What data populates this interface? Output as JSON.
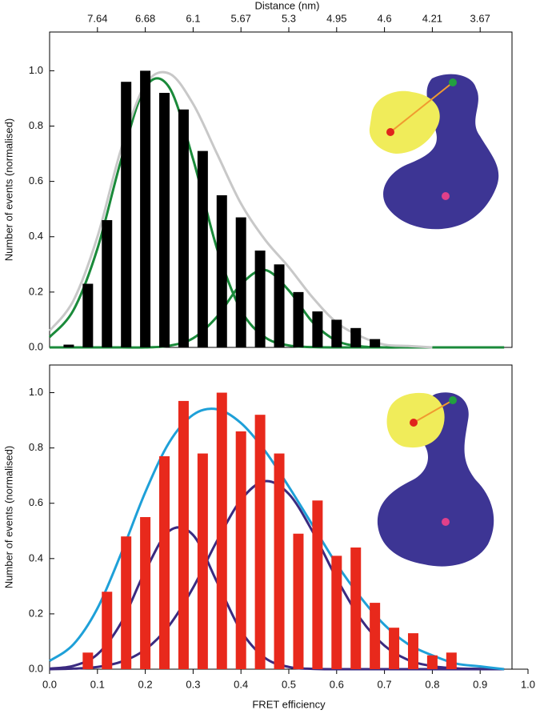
{
  "chart_data": [
    {
      "type": "bar",
      "ylabel": "Number of events (normalised)",
      "x2label": "Distance (nm)",
      "xlim": [
        0,
        1
      ],
      "ylim": [
        0,
        1.14
      ],
      "yticks": [
        {
          "value": 0,
          "label": "0.0"
        },
        0.2,
        0.4,
        0.6,
        0.8,
        {
          "value": 1,
          "label": "1.0"
        }
      ],
      "x2ticks": [
        {
          "value": 0.1,
          "label": "7.64"
        },
        {
          "value": 0.2,
          "label": "6.68"
        },
        {
          "value": 0.3,
          "label": "6.1"
        },
        {
          "value": 0.4,
          "label": "5.67"
        },
        {
          "value": 0.5,
          "label": "5.3"
        },
        {
          "value": 0.6,
          "label": "4.95"
        },
        {
          "value": 0.7,
          "label": "4.6"
        },
        {
          "value": 0.8,
          "label": "4.21"
        },
        {
          "value": 0.9,
          "label": "3.67"
        }
      ],
      "color": "#000000",
      "x": [
        0.04,
        0.08,
        0.12,
        0.16,
        0.2,
        0.24,
        0.28,
        0.32,
        0.36,
        0.4,
        0.44,
        0.48,
        0.52,
        0.56,
        0.6,
        0.64,
        0.68
      ],
      "values": [
        0.01,
        0.23,
        0.46,
        0.96,
        1.0,
        0.92,
        0.86,
        0.71,
        0.55,
        0.47,
        0.35,
        0.3,
        0.2,
        0.13,
        0.1,
        0.07,
        0.03
      ],
      "curves": [
        {
          "color": "#c8c8c8",
          "x": [
            0,
            0.05,
            0.1,
            0.15,
            0.2,
            0.25,
            0.3,
            0.35,
            0.4,
            0.45,
            0.5,
            0.55,
            0.6,
            0.65,
            0.7,
            0.75,
            0.8
          ],
          "values": [
            0.06,
            0.17,
            0.4,
            0.72,
            0.95,
            0.99,
            0.88,
            0.7,
            0.52,
            0.39,
            0.29,
            0.18,
            0.09,
            0.04,
            0.01,
            0.005,
            0
          ]
        },
        {
          "color": "#1a8a3a",
          "x": [
            0,
            0.05,
            0.1,
            0.15,
            0.2,
            0.25,
            0.3,
            0.35,
            0.4,
            0.45,
            0.5,
            0.55,
            0.6,
            0.65,
            0.7,
            0.75,
            0.8,
            0.85,
            0.9,
            0.95
          ],
          "values": [
            0.037,
            0.135,
            0.357,
            0.68,
            0.94,
            0.94,
            0.68,
            0.357,
            0.135,
            0.037,
            0.007,
            0.001,
            0,
            0,
            0,
            0,
            0,
            0,
            0,
            0
          ]
        },
        {
          "color": "#1a8a3a",
          "x": [
            0,
            0.05,
            0.1,
            0.15,
            0.2,
            0.25,
            0.3,
            0.35,
            0.4,
            0.45,
            0.5,
            0.55,
            0.6,
            0.65,
            0.7,
            0.75,
            0.8,
            0.85,
            0.9,
            0.95
          ],
          "values": [
            0,
            0,
            0,
            0,
            0,
            0.006,
            0.033,
            0.111,
            0.228,
            0.28,
            0.206,
            0.091,
            0.024,
            0.004,
            0,
            0,
            0,
            0,
            0,
            0
          ]
        }
      ]
    },
    {
      "type": "bar",
      "ylabel": "Number of events (normalised)",
      "xlabel": "FRET efficiency",
      "xlim": [
        0,
        1
      ],
      "ylim": [
        0,
        1.1
      ],
      "yticks": [
        {
          "value": 0,
          "label": "0.0"
        },
        0.2,
        0.4,
        0.6,
        0.8,
        {
          "value": 1,
          "label": "1.0"
        }
      ],
      "xticks": [
        {
          "value": 0,
          "label": "0.0"
        },
        0.1,
        0.2,
        0.3,
        0.4,
        0.5,
        0.6,
        0.7,
        0.8,
        0.9,
        {
          "value": 1,
          "label": "1.0"
        }
      ],
      "color": "#e8291c",
      "x": [
        0.08,
        0.12,
        0.16,
        0.2,
        0.24,
        0.28,
        0.32,
        0.36,
        0.4,
        0.44,
        0.48,
        0.52,
        0.56,
        0.6,
        0.64,
        0.68,
        0.72,
        0.76,
        0.8,
        0.84
      ],
      "values": [
        0.06,
        0.28,
        0.48,
        0.55,
        0.77,
        0.97,
        0.78,
        1.0,
        0.86,
        0.92,
        0.78,
        0.49,
        0.61,
        0.41,
        0.44,
        0.24,
        0.15,
        0.13,
        0.05,
        0.06
      ],
      "curves": [
        {
          "color": "#1ea0d8",
          "x": [
            0,
            0.05,
            0.1,
            0.15,
            0.2,
            0.25,
            0.3,
            0.35,
            0.4,
            0.45,
            0.5,
            0.55,
            0.6,
            0.65,
            0.7,
            0.75,
            0.8,
            0.85,
            0.9,
            0.95
          ],
          "values": [
            0.03,
            0.09,
            0.22,
            0.42,
            0.64,
            0.82,
            0.92,
            0.94,
            0.89,
            0.79,
            0.66,
            0.52,
            0.38,
            0.26,
            0.16,
            0.09,
            0.05,
            0.02,
            0.01,
            0
          ]
        },
        {
          "color": "#3a2a80",
          "x": [
            0,
            0.05,
            0.1,
            0.15,
            0.2,
            0.25,
            0.3,
            0.35,
            0.4,
            0.45,
            0.5,
            0.55,
            0.6,
            0.65,
            0.7,
            0.75,
            0.8,
            0.85,
            0.9,
            0.95
          ],
          "values": [
            0.002,
            0.012,
            0.054,
            0.169,
            0.355,
            0.5,
            0.485,
            0.315,
            0.139,
            0.041,
            0.008,
            0.001,
            0,
            0,
            0,
            0,
            0,
            0,
            0,
            0
          ]
        },
        {
          "color": "#3a2a80",
          "x": [
            0,
            0.05,
            0.1,
            0.15,
            0.2,
            0.25,
            0.3,
            0.35,
            0.4,
            0.45,
            0.5,
            0.55,
            0.6,
            0.65,
            0.7,
            0.75,
            0.8,
            0.85,
            0.9,
            0.95
          ],
          "values": [
            0,
            0.002,
            0.008,
            0.027,
            0.071,
            0.158,
            0.295,
            0.464,
            0.612,
            0.68,
            0.634,
            0.497,
            0.328,
            0.182,
            0.085,
            0.033,
            0.011,
            0.003,
            0.001,
            0
          ]
        }
      ]
    }
  ]
}
